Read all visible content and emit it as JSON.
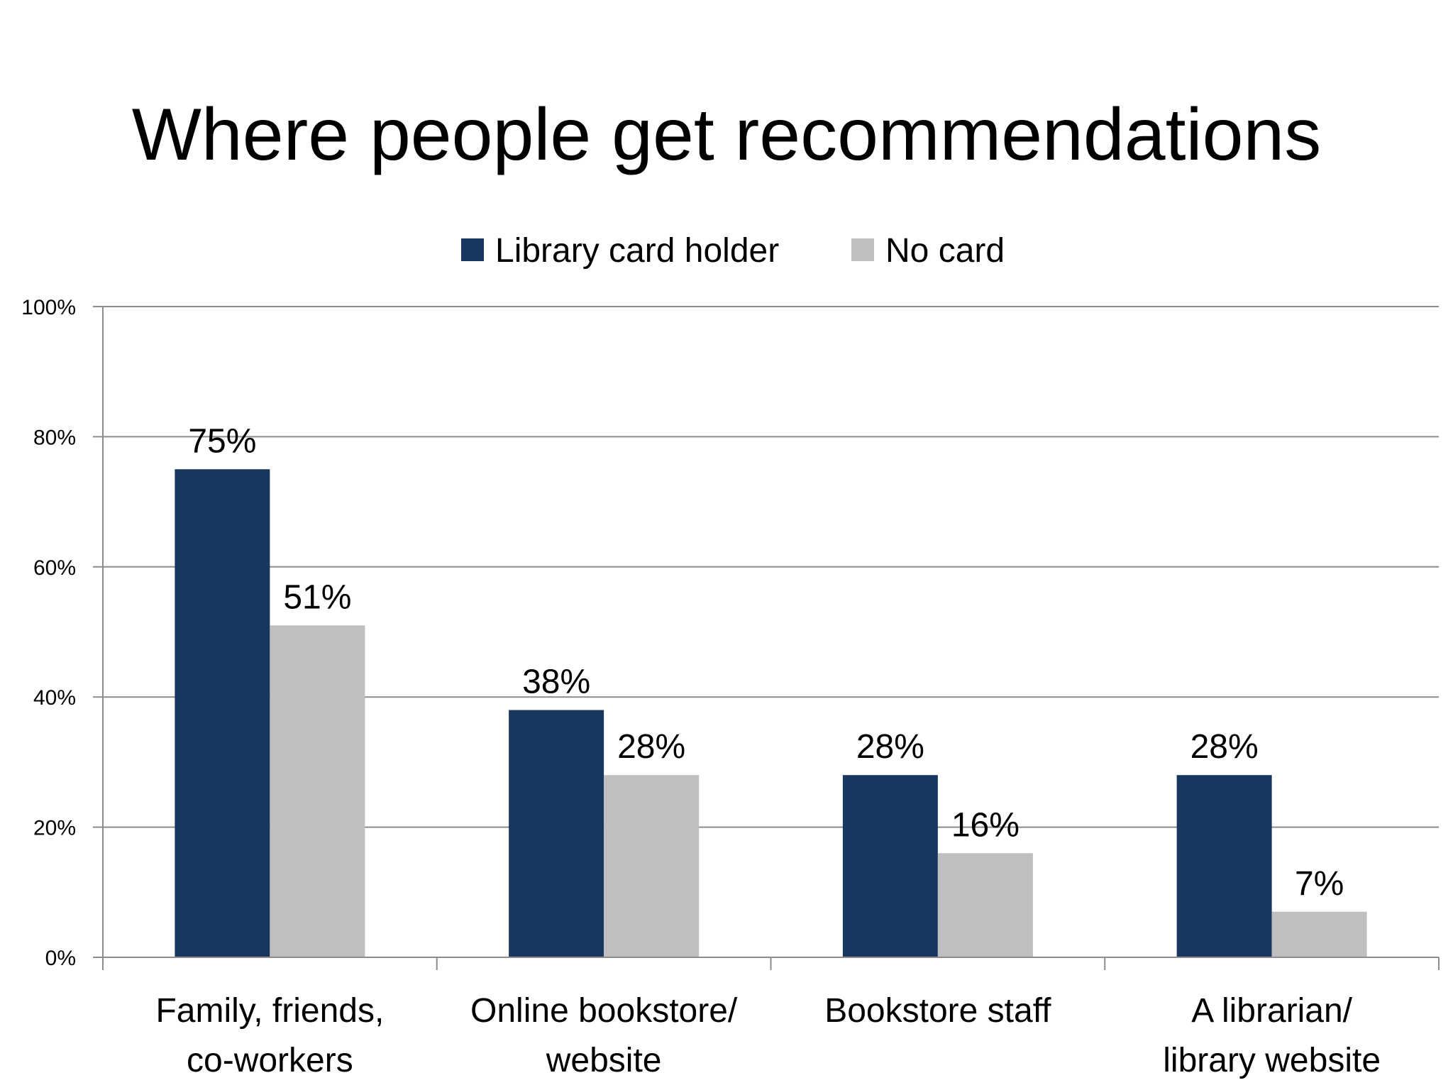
{
  "title": "Where people get recommendations",
  "colors": {
    "library_card_holder": "#17375e",
    "no_card": "#bfbfc1",
    "grid": "#8c8c8c",
    "text": "#000000"
  },
  "chart_data": {
    "type": "bar",
    "title": "Where people get recommendations",
    "xlabel": "",
    "ylabel": "",
    "ylim": [
      0,
      100
    ],
    "y_ticks": [
      0,
      20,
      40,
      60,
      80,
      100
    ],
    "y_tick_labels": [
      "0%",
      "20%",
      "40%",
      "60%",
      "80%",
      "100%"
    ],
    "grid": true,
    "legend": "top-center",
    "categories": [
      [
        "Family, friends,",
        "co-workers"
      ],
      [
        "Online bookstore/",
        "website"
      ],
      [
        "Bookstore staff"
      ],
      [
        "A librarian/",
        "library website"
      ]
    ],
    "series": [
      {
        "name": "Library card holder",
        "color": "#17375e",
        "values": [
          75,
          38,
          28,
          28
        ],
        "labels": [
          "75%",
          "38%",
          "28%",
          "28%"
        ]
      },
      {
        "name": "No card",
        "color": "#bfbfc1",
        "values": [
          51,
          28,
          16,
          7
        ],
        "labels": [
          "51%",
          "28%",
          "16%",
          "7%"
        ]
      }
    ]
  }
}
